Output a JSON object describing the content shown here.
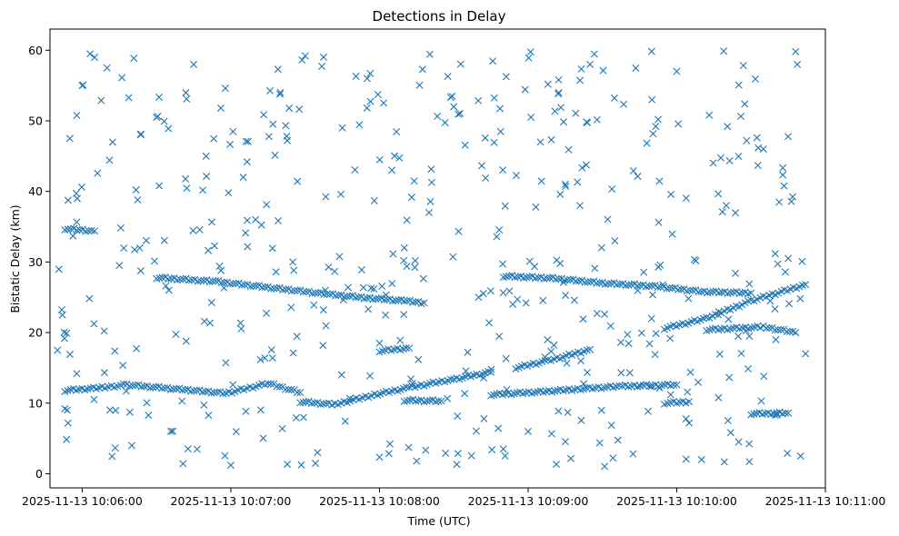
{
  "chart_data": {
    "type": "scatter",
    "title": "Detections in Delay",
    "xlabel": "Time (UTC)",
    "ylabel": "Bistatic Delay (km)",
    "x_axis": {
      "kind": "time",
      "min": "2025-11-13 10:05:47",
      "max": "2025-11-13 10:11:00",
      "ticks": [
        {
          "value": "2025-11-13 10:06:00",
          "label": "2025-11-13 10:06:00"
        },
        {
          "value": "2025-11-13 10:07:00",
          "label": "2025-11-13 10:07:00"
        },
        {
          "value": "2025-11-13 10:08:00",
          "label": "2025-11-13 10:08:00"
        },
        {
          "value": "2025-11-13 10:09:00",
          "label": "2025-11-13 10:09:00"
        },
        {
          "value": "2025-11-13 10:10:00",
          "label": "2025-11-13 10:10:00"
        },
        {
          "value": "2025-11-13 10:11:00",
          "label": "2025-11-13 10:11:00"
        }
      ]
    },
    "y_axis": {
      "min": -2,
      "max": 63,
      "ticks": [
        0,
        10,
        20,
        30,
        40,
        50,
        60
      ]
    },
    "grid": false,
    "marker": "x",
    "color": "#1f77b4",
    "data_start": "2025-11-13 10:05:50",
    "data_end": "2025-11-13 10:10:52",
    "tracks": [
      {
        "x": [
          "2025-11-13 10:05:53",
          "2025-11-13 10:06:08",
          "2025-11-13 10:06:18",
          "2025-11-13 10:06:38",
          "2025-11-13 10:06:58",
          "2025-11-13 10:07:15",
          "2025-11-13 10:07:28"
        ],
        "y": [
          11.8,
          12.2,
          12.6,
          12.0,
          11.4,
          12.8,
          11.5
        ]
      },
      {
        "x": [
          "2025-11-13 10:07:28",
          "2025-11-13 10:07:42",
          "2025-11-13 10:07:58",
          "2025-11-13 10:08:12",
          "2025-11-13 10:08:30",
          "2025-11-13 10:08:45"
        ],
        "y": [
          10.2,
          9.8,
          11.2,
          12.2,
          13.4,
          14.4
        ]
      },
      {
        "x": [
          "2025-11-13 10:06:30",
          "2025-11-13 10:06:55",
          "2025-11-13 10:07:15",
          "2025-11-13 10:07:40",
          "2025-11-13 10:07:55",
          "2025-11-13 10:08:10",
          "2025-11-13 10:08:18"
        ],
        "y": [
          27.8,
          27.2,
          26.4,
          25.4,
          24.9,
          24.5,
          24.2
        ]
      },
      {
        "x": [
          "2025-11-13 10:08:50",
          "2025-11-13 10:09:10",
          "2025-11-13 10:09:30",
          "2025-11-13 10:09:50",
          "2025-11-13 10:10:10",
          "2025-11-13 10:10:30"
        ],
        "y": [
          28.0,
          27.7,
          27.0,
          26.6,
          25.8,
          25.6
        ]
      },
      {
        "x": [
          "2025-11-13 10:08:45",
          "2025-11-13 10:09:05",
          "2025-11-13 10:09:20",
          "2025-11-13 10:09:38",
          "2025-11-13 10:10:00"
        ],
        "y": [
          11.2,
          11.6,
          12.0,
          12.4,
          12.6
        ]
      },
      {
        "x": [
          "2025-11-13 10:08:55",
          "2025-11-13 10:09:08",
          "2025-11-13 10:09:25"
        ],
        "y": [
          15.0,
          16.0,
          17.6
        ]
      },
      {
        "x": [
          "2025-11-13 10:09:55",
          "2025-11-13 10:10:12",
          "2025-11-13 10:10:30",
          "2025-11-13 10:10:52"
        ],
        "y": [
          20.6,
          22.0,
          24.5,
          26.8
        ]
      },
      {
        "x": [
          "2025-11-13 10:10:12",
          "2025-11-13 10:10:35",
          "2025-11-13 10:10:48"
        ],
        "y": [
          20.4,
          20.8,
          20.0
        ]
      },
      {
        "x": [
          "2025-11-13 10:05:53",
          "2025-11-13 10:06:05"
        ],
        "y": [
          34.7,
          34.4
        ]
      },
      {
        "x": [
          "2025-11-13 10:08:00",
          "2025-11-13 10:08:12"
        ],
        "y": [
          17.4,
          17.8
        ]
      },
      {
        "x": [
          "2025-11-13 10:08:10",
          "2025-11-13 10:08:25"
        ],
        "y": [
          10.4,
          10.3
        ]
      },
      {
        "x": [
          "2025-11-13 10:09:55",
          "2025-11-13 10:10:05"
        ],
        "y": [
          10.0,
          10.2
        ]
      },
      {
        "x": [
          "2025-11-13 10:10:30",
          "2025-11-13 10:10:45"
        ],
        "y": [
          8.5,
          8.6
        ]
      }
    ],
    "scatter_points": {
      "x": [
        "2025-11-13 10:05:50",
        "2025-11-13 10:05:52",
        "2025-11-13 10:05:53",
        "2025-11-13 10:05:55",
        "2025-11-13 10:05:58",
        "2025-11-13 10:06:00",
        "2025-11-13 10:06:05",
        "2025-11-13 10:06:10",
        "2025-11-13 10:06:15",
        "2025-11-13 10:06:20",
        "2025-11-13 10:06:30",
        "2025-11-13 10:06:35",
        "2025-11-13 10:06:45",
        "2025-11-13 10:06:50",
        "2025-11-13 10:07:00",
        "2025-11-13 10:07:05",
        "2025-11-13 10:07:10",
        "2025-11-13 10:07:20",
        "2025-11-13 10:07:25",
        "2025-11-13 10:07:30",
        "2025-11-13 10:07:35",
        "2025-11-13 10:07:45",
        "2025-11-13 10:07:55",
        "2025-11-13 10:08:00",
        "2025-11-13 10:08:05",
        "2025-11-13 10:08:10",
        "2025-11-13 10:08:15",
        "2025-11-13 10:08:20",
        "2025-11-13 10:08:30",
        "2025-11-13 10:08:40",
        "2025-11-13 10:08:50",
        "2025-11-13 10:09:00",
        "2025-11-13 10:09:05",
        "2025-11-13 10:09:15",
        "2025-11-13 10:09:25",
        "2025-11-13 10:09:35",
        "2025-11-13 10:09:45",
        "2025-11-13 10:09:50",
        "2025-11-13 10:10:00",
        "2025-11-13 10:10:10",
        "2025-11-13 10:10:20",
        "2025-11-13 10:10:25",
        "2025-11-13 10:10:35",
        "2025-11-13 10:10:40",
        "2025-11-13 10:10:45",
        "2025-11-13 10:10:48",
        "2025-11-13 10:10:50",
        "2025-11-13 10:10:52"
      ],
      "y": [
        17.5,
        22.5,
        9.2,
        47.5,
        39.0,
        55.0,
        59.0,
        57.5,
        29.5,
        4.0,
        50.5,
        26.0,
        58.0,
        45.0,
        1.2,
        42.0,
        36.0,
        54.0,
        30.0,
        59.2,
        3.0,
        49.0,
        56.0,
        18.5,
        43.0,
        32.0,
        1.8,
        37.0,
        52.0,
        25.0,
        3.5,
        6.0,
        47.0,
        41.0,
        58.0,
        33.0,
        12.5,
        53.0,
        57.0,
        2.0,
        38.0,
        4.5,
        46.0,
        19.0,
        30.5,
        59.8,
        2.5,
        17.0
      ]
    }
  }
}
